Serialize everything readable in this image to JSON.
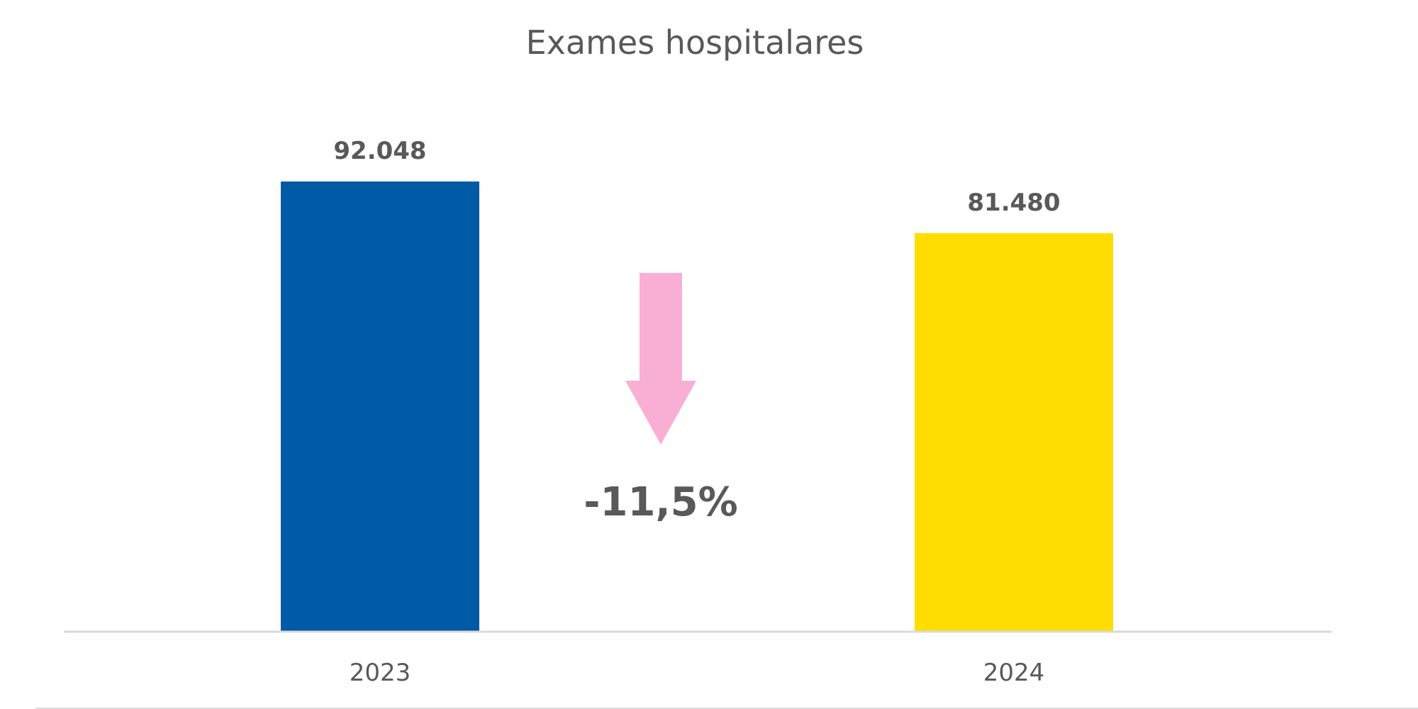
{
  "chart_data": {
    "type": "bar",
    "title": "Exames hospitalares",
    "xlabel": "",
    "ylabel": "",
    "categories": [
      "2023",
      "2024"
    ],
    "values": [
      92048,
      81480
    ],
    "data_labels": [
      "92.048",
      "81.480"
    ],
    "ylim": [
      0,
      100000
    ],
    "grid": false,
    "legend": "none",
    "colors": [
      "#005AA5",
      "#FFDD00"
    ],
    "annotation": {
      "text": "-11,5%",
      "arrow_icon": "down-arrow-icon",
      "arrow_color": "#F9AED3"
    }
  }
}
